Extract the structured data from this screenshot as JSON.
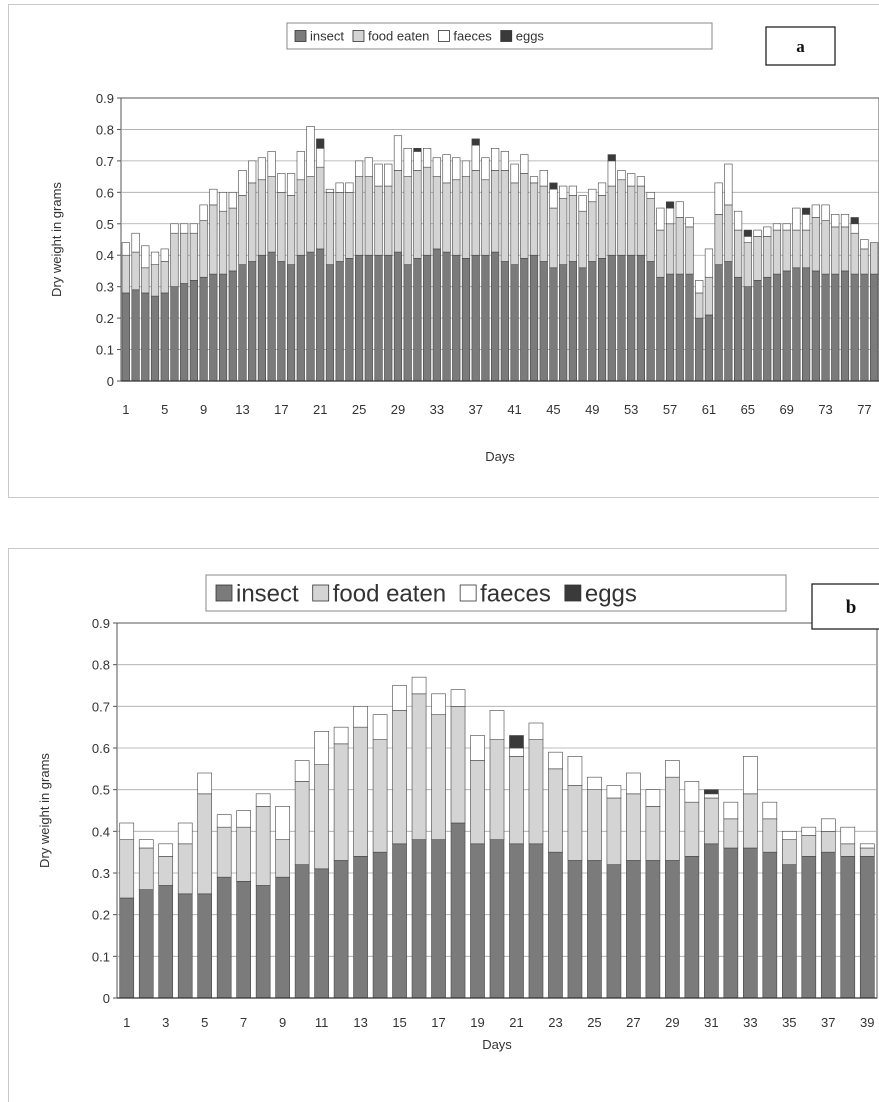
{
  "colors": {
    "insect": "#7b7b7b",
    "food_eaten": "#d4d4d4",
    "faeces": "#ffffff",
    "eggs": "#3a3a3a",
    "outline": "#444444",
    "grid": "#a8a8a8"
  },
  "chart_data": [
    {
      "panel_label": "a",
      "type": "bar",
      "stacked": true,
      "title": "",
      "xlabel": "Days",
      "ylabel": "Dry weight in grams",
      "ylim": [
        0,
        0.9
      ],
      "yticks": [
        "0",
        "0.1",
        "0.2",
        "0.3",
        "0.4",
        "0.5",
        "0.6",
        "0.7",
        "0.8",
        "0.9"
      ],
      "grid": true,
      "legend_position": "top",
      "x_tick_labels": [
        "1",
        "5",
        "9",
        "13",
        "17",
        "21",
        "25",
        "29",
        "33",
        "37",
        "41",
        "45",
        "49",
        "53",
        "57",
        "61",
        "65",
        "69",
        "73",
        "77"
      ],
      "x": [
        1,
        2,
        3,
        4,
        5,
        6,
        7,
        8,
        9,
        10,
        11,
        12,
        13,
        14,
        15,
        16,
        17,
        18,
        19,
        20,
        21,
        22,
        23,
        24,
        25,
        26,
        27,
        28,
        29,
        30,
        31,
        32,
        33,
        34,
        35,
        36,
        37,
        38,
        39,
        40,
        41,
        42,
        43,
        44,
        45,
        46,
        47,
        48,
        49,
        50,
        51,
        52,
        53,
        54,
        55,
        56,
        57,
        58,
        59,
        60,
        61,
        62,
        63,
        64,
        65,
        66,
        67,
        68,
        69,
        70,
        71,
        72,
        73,
        74,
        75,
        76,
        77,
        78
      ],
      "series": [
        {
          "name": "insect",
          "values": [
            0.28,
            0.29,
            0.28,
            0.27,
            0.28,
            0.3,
            0.31,
            0.32,
            0.33,
            0.34,
            0.34,
            0.35,
            0.37,
            0.38,
            0.4,
            0.41,
            0.38,
            0.37,
            0.4,
            0.41,
            0.42,
            0.37,
            0.38,
            0.39,
            0.4,
            0.4,
            0.4,
            0.4,
            0.41,
            0.37,
            0.39,
            0.4,
            0.42,
            0.41,
            0.4,
            0.39,
            0.4,
            0.4,
            0.41,
            0.38,
            0.37,
            0.39,
            0.4,
            0.38,
            0.36,
            0.37,
            0.38,
            0.36,
            0.38,
            0.39,
            0.4,
            0.4,
            0.4,
            0.4,
            0.38,
            0.33,
            0.34,
            0.34,
            0.34,
            0.2,
            0.21,
            0.37,
            0.38,
            0.33,
            0.3,
            0.32,
            0.33,
            0.34,
            0.35,
            0.36,
            0.36,
            0.35,
            0.34,
            0.34,
            0.35,
            0.34,
            0.34,
            0.34
          ]
        },
        {
          "name": "food eaten",
          "values": [
            0.12,
            0.12,
            0.08,
            0.1,
            0.1,
            0.17,
            0.16,
            0.15,
            0.18,
            0.22,
            0.2,
            0.2,
            0.22,
            0.25,
            0.24,
            0.24,
            0.22,
            0.22,
            0.24,
            0.24,
            0.26,
            0.23,
            0.22,
            0.21,
            0.25,
            0.25,
            0.22,
            0.22,
            0.26,
            0.28,
            0.28,
            0.28,
            0.23,
            0.22,
            0.24,
            0.26,
            0.27,
            0.24,
            0.26,
            0.29,
            0.26,
            0.27,
            0.23,
            0.24,
            0.19,
            0.21,
            0.21,
            0.18,
            0.19,
            0.2,
            0.22,
            0.24,
            0.22,
            0.22,
            0.2,
            0.15,
            0.16,
            0.18,
            0.15,
            0.08,
            0.12,
            0.16,
            0.18,
            0.15,
            0.14,
            0.14,
            0.13,
            0.14,
            0.13,
            0.12,
            0.12,
            0.17,
            0.17,
            0.15,
            0.14,
            0.13,
            0.08,
            0.1
          ]
        },
        {
          "name": "faeces",
          "values": [
            0.04,
            0.06,
            0.07,
            0.04,
            0.04,
            0.03,
            0.03,
            0.03,
            0.05,
            0.05,
            0.06,
            0.05,
            0.08,
            0.07,
            0.07,
            0.08,
            0.06,
            0.07,
            0.09,
            0.16,
            0.06,
            0.01,
            0.03,
            0.03,
            0.05,
            0.06,
            0.07,
            0.07,
            0.11,
            0.09,
            0.06,
            0.06,
            0.06,
            0.09,
            0.07,
            0.05,
            0.08,
            0.07,
            0.07,
            0.06,
            0.06,
            0.06,
            0.02,
            0.05,
            0.06,
            0.04,
            0.03,
            0.05,
            0.04,
            0.04,
            0.08,
            0.03,
            0.04,
            0.03,
            0.02,
            0.07,
            0.05,
            0.05,
            0.03,
            0.04,
            0.09,
            0.1,
            0.13,
            0.06,
            0.02,
            0.02,
            0.03,
            0.02,
            0.02,
            0.07,
            0.05,
            0.04,
            0.05,
            0.04,
            0.04,
            0.03,
            0.03,
            0.0
          ]
        },
        {
          "name": "eggs",
          "values": [
            0,
            0,
            0,
            0,
            0,
            0,
            0,
            0,
            0,
            0,
            0,
            0,
            0,
            0,
            0,
            0,
            0,
            0,
            0,
            0,
            0.03,
            0,
            0,
            0,
            0,
            0,
            0,
            0,
            0,
            0,
            0.01,
            0,
            0,
            0,
            0,
            0,
            0.02,
            0,
            0,
            0,
            0,
            0,
            0,
            0,
            0.02,
            0,
            0,
            0,
            0,
            0,
            0.02,
            0,
            0,
            0,
            0,
            0,
            0.02,
            0,
            0,
            0,
            0,
            0,
            0,
            0,
            0.02,
            0,
            0,
            0,
            0,
            0,
            0.02,
            0,
            0,
            0,
            0,
            0.02,
            0,
            0
          ]
        }
      ]
    },
    {
      "panel_label": "b",
      "type": "bar",
      "stacked": true,
      "title": "",
      "xlabel": "Days",
      "ylabel": "Dry weight in grams",
      "ylim": [
        0,
        0.9
      ],
      "yticks": [
        "0",
        "0.1",
        "0.2",
        "0.3",
        "0.4",
        "0.5",
        "0.6",
        "0.7",
        "0.8",
        "0.9"
      ],
      "grid": true,
      "legend_position": "top",
      "x_tick_labels": [
        "1",
        "3",
        "5",
        "7",
        "9",
        "11",
        "13",
        "15",
        "17",
        "19",
        "21",
        "23",
        "25",
        "27",
        "29",
        "31",
        "33",
        "35",
        "37",
        "39"
      ],
      "x": [
        1,
        2,
        3,
        4,
        5,
        6,
        7,
        8,
        9,
        10,
        11,
        12,
        13,
        14,
        15,
        16,
        17,
        18,
        19,
        20,
        21,
        22,
        23,
        24,
        25,
        26,
        27,
        28,
        29,
        30,
        31,
        32,
        33,
        34,
        35,
        36,
        37,
        38,
        39
      ],
      "series": [
        {
          "name": "insect",
          "values": [
            0.24,
            0.26,
            0.27,
            0.25,
            0.25,
            0.29,
            0.28,
            0.27,
            0.29,
            0.32,
            0.31,
            0.33,
            0.34,
            0.35,
            0.37,
            0.38,
            0.38,
            0.42,
            0.37,
            0.38,
            0.37,
            0.37,
            0.35,
            0.33,
            0.33,
            0.32,
            0.33,
            0.33,
            0.33,
            0.34,
            0.37,
            0.36,
            0.36,
            0.35,
            0.32,
            0.34,
            0.35,
            0.34,
            0.34
          ]
        },
        {
          "name": "food eaten",
          "values": [
            0.14,
            0.1,
            0.07,
            0.12,
            0.24,
            0.12,
            0.13,
            0.19,
            0.09,
            0.2,
            0.25,
            0.28,
            0.31,
            0.27,
            0.32,
            0.35,
            0.3,
            0.28,
            0.2,
            0.24,
            0.21,
            0.25,
            0.2,
            0.18,
            0.17,
            0.16,
            0.16,
            0.13,
            0.2,
            0.13,
            0.11,
            0.07,
            0.13,
            0.08,
            0.06,
            0.05,
            0.05,
            0.03,
            0.02
          ]
        },
        {
          "name": "faeces",
          "values": [
            0.04,
            0.02,
            0.03,
            0.05,
            0.05,
            0.03,
            0.04,
            0.03,
            0.08,
            0.05,
            0.08,
            0.04,
            0.05,
            0.06,
            0.06,
            0.04,
            0.05,
            0.04,
            0.06,
            0.07,
            0.02,
            0.04,
            0.04,
            0.07,
            0.03,
            0.03,
            0.05,
            0.04,
            0.04,
            0.05,
            0.01,
            0.04,
            0.09,
            0.04,
            0.02,
            0.02,
            0.03,
            0.04,
            0.01
          ]
        },
        {
          "name": "eggs",
          "values": [
            0,
            0,
            0,
            0,
            0,
            0,
            0,
            0,
            0,
            0,
            0,
            0,
            0,
            0,
            0,
            0,
            0,
            0,
            0,
            0,
            0.03,
            0,
            0,
            0,
            0,
            0,
            0,
            0,
            0,
            0,
            0.01,
            0,
            0,
            0,
            0,
            0,
            0,
            0,
            0
          ]
        }
      ]
    }
  ]
}
